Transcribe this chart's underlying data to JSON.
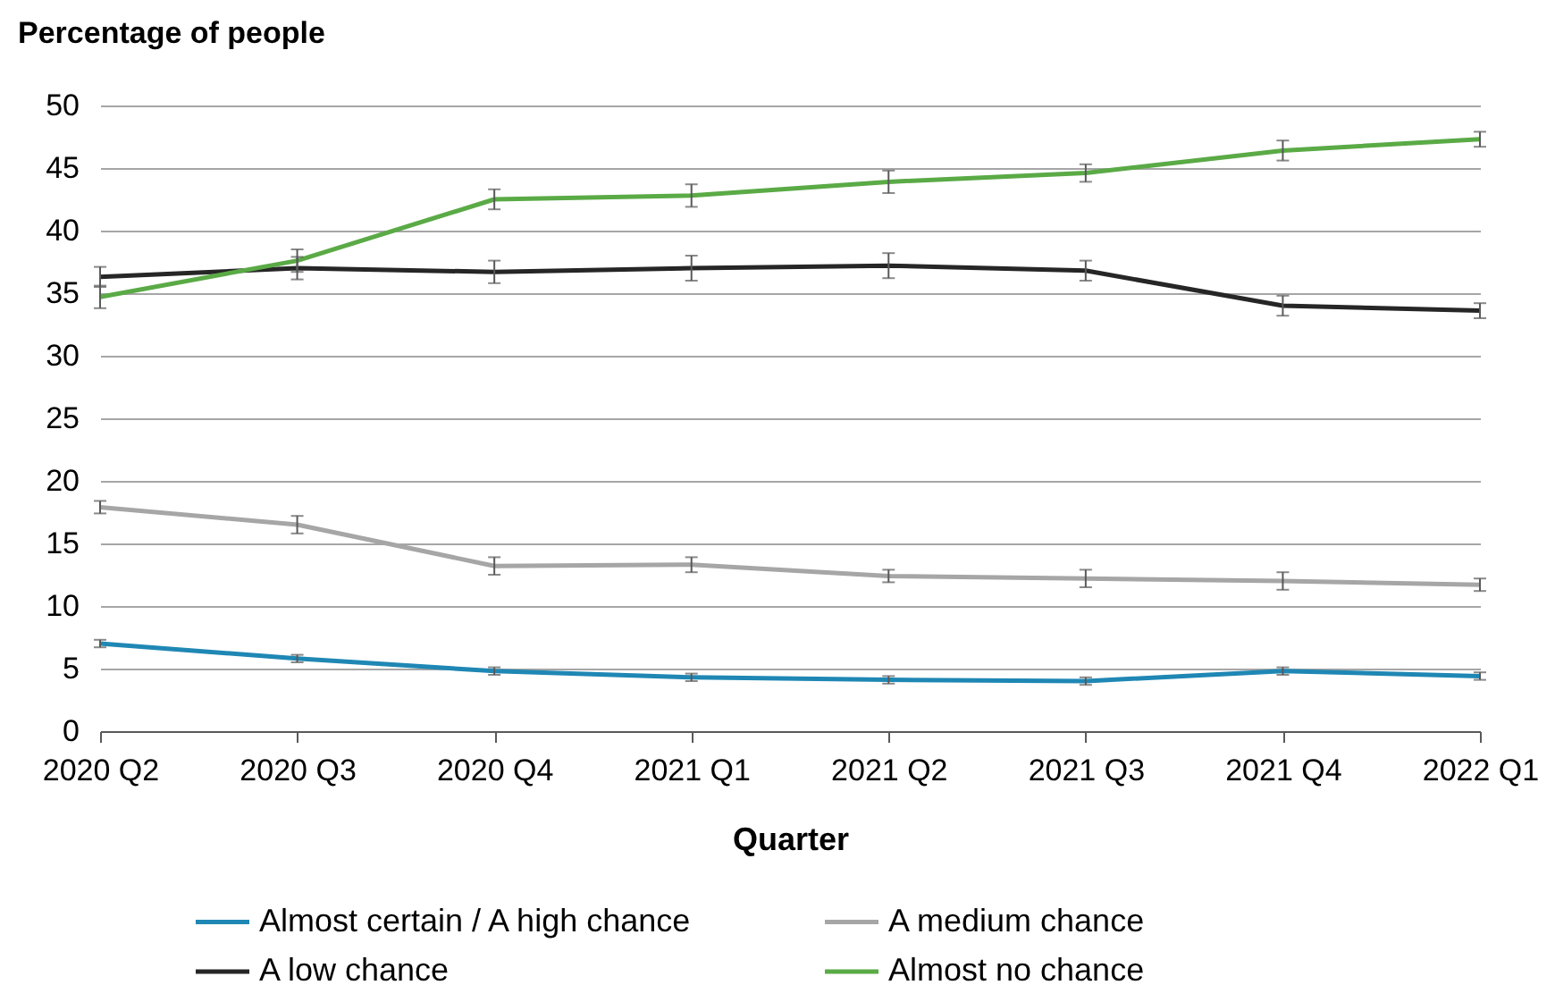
{
  "chart_data": {
    "type": "line",
    "title": "Percentage of people",
    "xlabel": "Quarter",
    "categories": [
      "2020 Q2",
      "2020 Q3",
      "2020 Q4",
      "2021 Q1",
      "2021 Q2",
      "2021 Q3",
      "2021 Q4",
      "2022 Q1"
    ],
    "series": [
      {
        "name": "Almost certain / A high chance",
        "color": "#1f87b4",
        "values": [
          7.0,
          5.8,
          4.8,
          4.3,
          4.1,
          4.0,
          4.8,
          4.4
        ],
        "errors": [
          0.3,
          0.3,
          0.3,
          0.3,
          0.3,
          0.3,
          0.3,
          0.3
        ]
      },
      {
        "name": "A medium chance",
        "color": "#a6a6a6",
        "values": [
          17.9,
          16.5,
          13.2,
          13.3,
          12.4,
          12.2,
          12.0,
          11.7
        ],
        "errors": [
          0.5,
          0.7,
          0.7,
          0.6,
          0.5,
          0.7,
          0.7,
          0.5
        ]
      },
      {
        "name": "A low chance",
        "color": "#262626",
        "values": [
          36.3,
          37.0,
          36.7,
          37.0,
          37.2,
          36.8,
          34.0,
          33.6
        ],
        "errors": [
          0.8,
          0.9,
          0.9,
          1.0,
          1.0,
          0.8,
          0.8,
          0.6
        ]
      },
      {
        "name": "Almost no chance",
        "color": "#5aaa46",
        "values": [
          34.7,
          37.6,
          42.5,
          42.8,
          43.9,
          44.6,
          46.4,
          47.3
        ],
        "errors": [
          0.9,
          0.9,
          0.8,
          0.9,
          0.9,
          0.7,
          0.8,
          0.6
        ]
      }
    ],
    "ylim": [
      0,
      50
    ],
    "yticks": [
      0,
      5,
      10,
      15,
      20,
      25,
      30,
      35,
      40,
      45,
      50
    ],
    "grid": "y",
    "legend": "bottom",
    "marker": "none",
    "line_style": "solid"
  }
}
